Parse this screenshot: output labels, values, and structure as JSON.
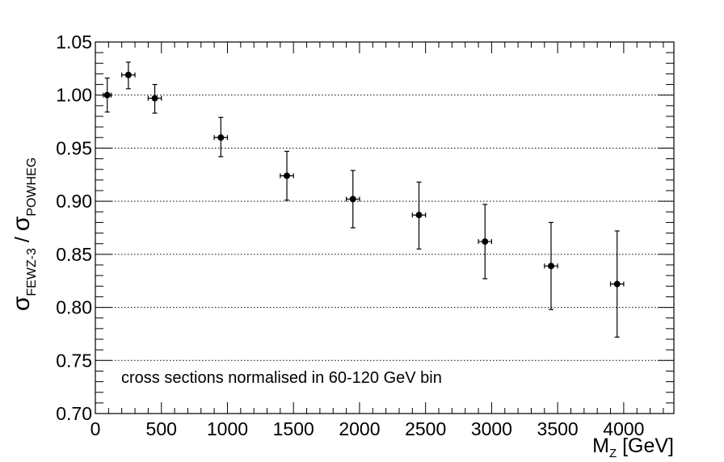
{
  "chart_data": {
    "type": "scatter",
    "xlabel": {
      "main": "M",
      "sub": "Z",
      "unit": " [GeV]"
    },
    "ylabel": {
      "sigma1": "σ",
      "sub1": "FEWZ-3",
      "slash": " / ",
      "sigma2": "σ",
      "sub2": "POWHEG"
    },
    "annotation": "cross sections normalised in 60-120 GeV bin",
    "xlim": [
      0,
      4380
    ],
    "ylim": [
      0.7,
      1.05
    ],
    "x_ticks": [
      0,
      500,
      1000,
      1500,
      2000,
      2500,
      3000,
      3500,
      4000
    ],
    "y_ticks": [
      0.7,
      0.75,
      0.8,
      0.85,
      0.9,
      0.95,
      1.0,
      1.05
    ],
    "x_tick_labels": [
      "0",
      "500",
      "1000",
      "1500",
      "2000",
      "2500",
      "3000",
      "3500",
      "4000"
    ],
    "y_tick_labels": [
      "0.70",
      "0.75",
      "0.80",
      "0.85",
      "0.90",
      "0.95",
      "1.00",
      "1.05"
    ],
    "grid": "horizontal dotted at major y ticks",
    "points": [
      {
        "x": 90,
        "xerr": 30,
        "y": 1.0,
        "yerr_up": 0.016,
        "yerr_down": 0.016
      },
      {
        "x": 250,
        "xerr": 50,
        "y": 1.019,
        "yerr_up": 0.012,
        "yerr_down": 0.013
      },
      {
        "x": 450,
        "xerr": 50,
        "y": 0.997,
        "yerr_up": 0.013,
        "yerr_down": 0.014
      },
      {
        "x": 950,
        "xerr": 50,
        "y": 0.96,
        "yerr_up": 0.019,
        "yerr_down": 0.018
      },
      {
        "x": 1450,
        "xerr": 50,
        "y": 0.924,
        "yerr_up": 0.023,
        "yerr_down": 0.023
      },
      {
        "x": 1950,
        "xerr": 50,
        "y": 0.902,
        "yerr_up": 0.027,
        "yerr_down": 0.027
      },
      {
        "x": 2450,
        "xerr": 50,
        "y": 0.887,
        "yerr_up": 0.031,
        "yerr_down": 0.032
      },
      {
        "x": 2950,
        "xerr": 50,
        "y": 0.862,
        "yerr_up": 0.035,
        "yerr_down": 0.035
      },
      {
        "x": 3450,
        "xerr": 50,
        "y": 0.839,
        "yerr_up": 0.041,
        "yerr_down": 0.041
      },
      {
        "x": 3950,
        "xerr": 50,
        "y": 0.822,
        "yerr_up": 0.05,
        "yerr_down": 0.05
      }
    ]
  }
}
